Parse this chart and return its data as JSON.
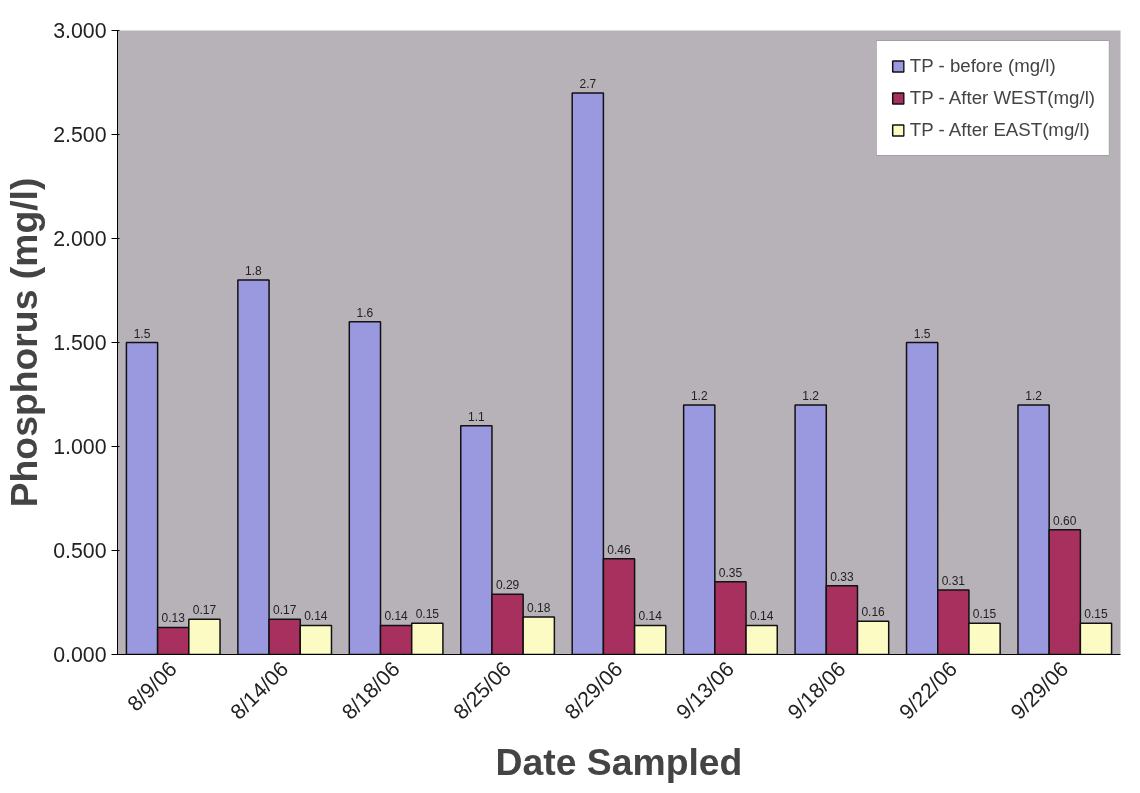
{
  "chart_data": {
    "type": "bar",
    "xlabel": "Date Sampled",
    "ylabel": "Phosphorus (mg/l)",
    "categories": [
      "8/9/06",
      "8/14/06",
      "8/18/06",
      "8/25/06",
      "8/29/06",
      "9/13/06",
      "9/18/06",
      "9/22/06",
      "9/29/06"
    ],
    "series": [
      {
        "name": "TP - before (mg/l)",
        "color": "#9a99e0",
        "values": [
          1.5,
          1.8,
          1.6,
          1.1,
          2.7,
          1.2,
          1.2,
          1.5,
          1.2
        ],
        "value_labels": [
          "1.5",
          "1.8",
          "1.6",
          "1.1",
          "2.7",
          "1.2",
          "1.2",
          "1.5",
          "1.2"
        ]
      },
      {
        "name": "TP - After WEST(mg/l)",
        "color": "#a8305e",
        "values": [
          0.13,
          0.17,
          0.14,
          0.29,
          0.46,
          0.35,
          0.33,
          0.31,
          0.6
        ],
        "value_labels": [
          "0.13",
          "0.17",
          "0.14",
          "0.29",
          "0.46",
          "0.35",
          "0.33",
          "0.31",
          "0.60"
        ]
      },
      {
        "name": "TP - After EAST(mg/l)",
        "color": "#fdfbc4",
        "values": [
          0.17,
          0.14,
          0.15,
          0.18,
          0.14,
          0.14,
          0.16,
          0.15,
          0.15
        ],
        "value_labels": [
          "0.17",
          "0.14",
          "0.15",
          "0.18",
          "0.14",
          "0.14",
          "0.16",
          "0.15",
          "0.15"
        ]
      }
    ],
    "ylim": [
      0,
      3
    ],
    "yticks": [
      {
        "value": 0,
        "label": "0.000"
      },
      {
        "value": 0.5,
        "label": "0.500"
      },
      {
        "value": 1,
        "label": "1.000"
      },
      {
        "value": 1.5,
        "label": "1.500"
      },
      {
        "value": 2,
        "label": "2.000"
      },
      {
        "value": 2.5,
        "label": "2.500"
      },
      {
        "value": 3,
        "label": "3.000"
      }
    ],
    "grid": false,
    "legend": "top right"
  }
}
